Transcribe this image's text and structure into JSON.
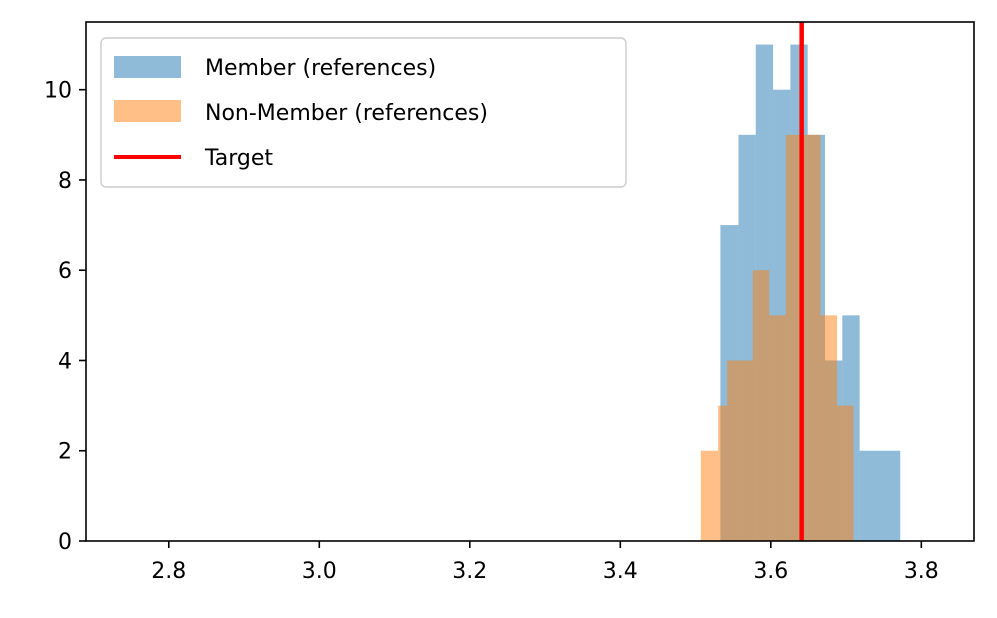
{
  "chart_data": {
    "type": "histogram",
    "title": "",
    "xlabel": "",
    "ylabel": "",
    "xlim": [
      2.69,
      3.87
    ],
    "ylim": [
      0,
      11.5
    ],
    "xticks": [
      "2.8",
      "3.0",
      "3.2",
      "3.4",
      "3.6",
      "3.8"
    ],
    "yticks": [
      "0",
      "2",
      "4",
      "6",
      "8",
      "10"
    ],
    "legend_position": "top-left",
    "series": [
      {
        "name": "Member (references)",
        "color": "#1f77b4",
        "alpha": 0.5,
        "bins": [
          {
            "x0": 3.533,
            "x1": 3.557,
            "count": 7
          },
          {
            "x0": 3.557,
            "x1": 3.58,
            "count": 9
          },
          {
            "x0": 3.58,
            "x1": 3.603,
            "count": 11
          },
          {
            "x0": 3.603,
            "x1": 3.626,
            "count": 10
          },
          {
            "x0": 3.626,
            "x1": 3.649,
            "count": 11
          },
          {
            "x0": 3.649,
            "x1": 3.672,
            "count": 9
          },
          {
            "x0": 3.672,
            "x1": 3.695,
            "count": 4
          },
          {
            "x0": 3.695,
            "x1": 3.718,
            "count": 5
          },
          {
            "x0": 3.718,
            "x1": 3.772,
            "count": 2
          }
        ]
      },
      {
        "name": "Non-Member (references)",
        "color": "#ff7f0e",
        "alpha": 0.5,
        "bins": [
          {
            "x0": 3.507,
            "x1": 3.53,
            "count": 2
          },
          {
            "x0": 3.53,
            "x1": 3.542,
            "count": 3
          },
          {
            "x0": 3.542,
            "x1": 3.576,
            "count": 4
          },
          {
            "x0": 3.576,
            "x1": 3.598,
            "count": 6
          },
          {
            "x0": 3.598,
            "x1": 3.62,
            "count": 5
          },
          {
            "x0": 3.62,
            "x1": 3.642,
            "count": 9
          },
          {
            "x0": 3.642,
            "x1": 3.666,
            "count": 9
          },
          {
            "x0": 3.666,
            "x1": 3.688,
            "count": 5
          },
          {
            "x0": 3.688,
            "x1": 3.71,
            "count": 3
          }
        ]
      }
    ],
    "target": {
      "name": "Target",
      "value": 3.641,
      "color": "#ff0000"
    }
  }
}
